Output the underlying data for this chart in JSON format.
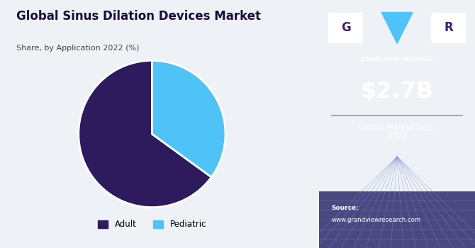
{
  "title": "Global Sinus Dilation Devices Market",
  "subtitle": "Share, by Application 2022 (%)",
  "pie_values": [
    65,
    35
  ],
  "pie_labels": [
    "Adult",
    "Pediatric"
  ],
  "pie_colors": [
    "#2d1b5e",
    "#4fc3f7"
  ],
  "pie_startangle": 90,
  "left_bg": "#eef2f7",
  "right_bg": "#3b1f6e",
  "market_size_value": "$2.7B",
  "market_size_label": "Global Market Size,\n2022",
  "source_label": "Source:",
  "source_url": "www.grandviewresearch.com",
  "gvr_text": "GRAND VIEW RESEARCH",
  "title_color": "#1a0a3c",
  "subtitle_color": "#444444",
  "legend_colors": [
    "#2d1b5e",
    "#4fc3f7"
  ],
  "legend_labels": [
    "Adult",
    "Pediatric"
  ]
}
